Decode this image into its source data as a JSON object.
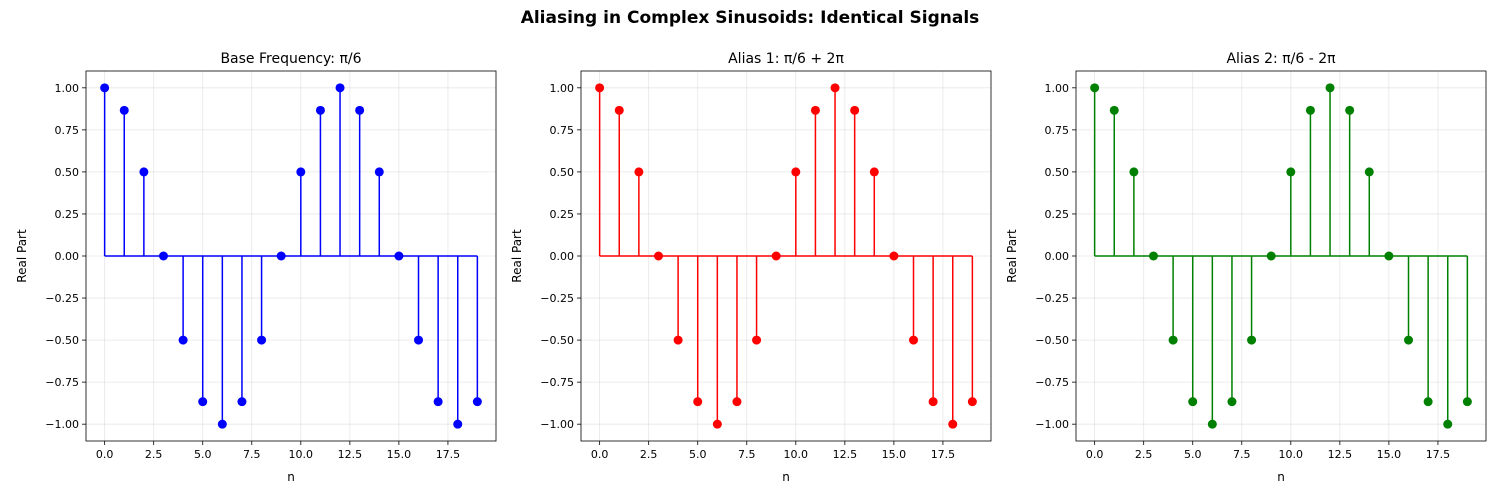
{
  "suptitle": "Aliasing in Complex Sinusoids: Identical Signals",
  "chart_data": [
    {
      "type": "stem",
      "title": "Base Frequency: π/6",
      "xlabel": "n",
      "ylabel": "Real Part",
      "color": "#0000ff",
      "xlim": [
        -0.95,
        19.95
      ],
      "ylim": [
        -1.1,
        1.1
      ],
      "grid": true,
      "xticks": [
        0,
        2.5,
        5,
        7.5,
        10,
        12.5,
        15,
        17.5
      ],
      "xtick_labels": [
        "0.0",
        "2.5",
        "5.0",
        "7.5",
        "10.0",
        "12.5",
        "15.0",
        "17.5"
      ],
      "yticks": [
        -1,
        -0.75,
        -0.5,
        -0.25,
        0,
        0.25,
        0.5,
        0.75,
        1
      ],
      "ytick_labels": [
        "−1.00",
        "−0.75",
        "−0.50",
        "−0.25",
        "0.00",
        "0.25",
        "0.50",
        "0.75",
        "1.00"
      ],
      "x": [
        0,
        1,
        2,
        3,
        4,
        5,
        6,
        7,
        8,
        9,
        10,
        11,
        12,
        13,
        14,
        15,
        16,
        17,
        18,
        19
      ],
      "y": [
        1.0,
        0.866,
        0.5,
        0.0,
        -0.5,
        -0.866,
        -1.0,
        -0.866,
        -0.5,
        0.0,
        0.5,
        0.866,
        1.0,
        0.866,
        0.5,
        0.0,
        -0.5,
        -0.866,
        -1.0,
        -0.866
      ]
    },
    {
      "type": "stem",
      "title": "Alias 1: π/6 + 2π",
      "xlabel": "n",
      "ylabel": "Real Part",
      "color": "#ff0000",
      "xlim": [
        -0.95,
        19.95
      ],
      "ylim": [
        -1.1,
        1.1
      ],
      "grid": true,
      "xticks": [
        0,
        2.5,
        5,
        7.5,
        10,
        12.5,
        15,
        17.5
      ],
      "xtick_labels": [
        "0.0",
        "2.5",
        "5.0",
        "7.5",
        "10.0",
        "12.5",
        "15.0",
        "17.5"
      ],
      "yticks": [
        -1,
        -0.75,
        -0.5,
        -0.25,
        0,
        0.25,
        0.5,
        0.75,
        1
      ],
      "ytick_labels": [
        "−1.00",
        "−0.75",
        "−0.50",
        "−0.25",
        "0.00",
        "0.25",
        "0.50",
        "0.75",
        "1.00"
      ],
      "x": [
        0,
        1,
        2,
        3,
        4,
        5,
        6,
        7,
        8,
        9,
        10,
        11,
        12,
        13,
        14,
        15,
        16,
        17,
        18,
        19
      ],
      "y": [
        1.0,
        0.866,
        0.5,
        0.0,
        -0.5,
        -0.866,
        -1.0,
        -0.866,
        -0.5,
        0.0,
        0.5,
        0.866,
        1.0,
        0.866,
        0.5,
        0.0,
        -0.5,
        -0.866,
        -1.0,
        -0.866
      ]
    },
    {
      "type": "stem",
      "title": "Alias 2: π/6 - 2π",
      "xlabel": "n",
      "ylabel": "Real Part",
      "color": "#008000",
      "xlim": [
        -0.95,
        19.95
      ],
      "ylim": [
        -1.1,
        1.1
      ],
      "grid": true,
      "xticks": [
        0,
        2.5,
        5,
        7.5,
        10,
        12.5,
        15,
        17.5
      ],
      "xtick_labels": [
        "0.0",
        "2.5",
        "5.0",
        "7.5",
        "10.0",
        "12.5",
        "15.0",
        "17.5"
      ],
      "yticks": [
        -1,
        -0.75,
        -0.5,
        -0.25,
        0,
        0.25,
        0.5,
        0.75,
        1
      ],
      "ytick_labels": [
        "−1.00",
        "−0.75",
        "−0.50",
        "−0.25",
        "0.00",
        "0.25",
        "0.50",
        "0.75",
        "1.00"
      ],
      "x": [
        0,
        1,
        2,
        3,
        4,
        5,
        6,
        7,
        8,
        9,
        10,
        11,
        12,
        13,
        14,
        15,
        16,
        17,
        18,
        19
      ],
      "y": [
        1.0,
        0.866,
        0.5,
        0.0,
        -0.5,
        -0.866,
        -1.0,
        -0.866,
        -0.5,
        0.0,
        0.5,
        0.866,
        1.0,
        0.866,
        0.5,
        0.0,
        -0.5,
        -0.866,
        -1.0,
        -0.866
      ]
    }
  ]
}
